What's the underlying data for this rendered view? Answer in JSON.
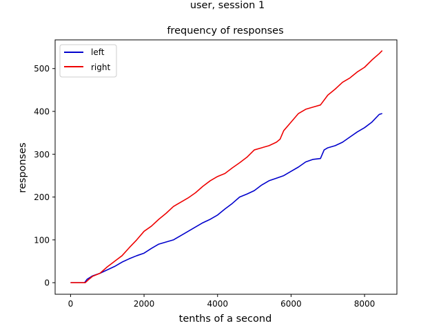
{
  "chart_data": {
    "type": "line",
    "suptitle": "user,  session 1",
    "title": "frequency of responses",
    "xlabel": "tenths of a second",
    "ylabel": "responses",
    "xlim": [
      -420,
      8880
    ],
    "ylim": [
      -27,
      567
    ],
    "xticks": [
      0,
      2000,
      4000,
      6000,
      8000
    ],
    "yticks": [
      0,
      100,
      200,
      300,
      400,
      500
    ],
    "xtick_labels": [
      "0",
      "2000",
      "4000",
      "6000",
      "8000"
    ],
    "ytick_labels": [
      "0",
      "100",
      "200",
      "300",
      "400",
      "500"
    ],
    "grid": false,
    "legend_position": "upper-left",
    "series": [
      {
        "name": "left",
        "color": "#0000cc",
        "points": [
          [
            0,
            0
          ],
          [
            380,
            0
          ],
          [
            450,
            8
          ],
          [
            600,
            16
          ],
          [
            800,
            22
          ],
          [
            1000,
            30
          ],
          [
            1200,
            38
          ],
          [
            1400,
            48
          ],
          [
            1600,
            56
          ],
          [
            1800,
            63
          ],
          [
            2000,
            69
          ],
          [
            2200,
            80
          ],
          [
            2400,
            90
          ],
          [
            2600,
            95
          ],
          [
            2800,
            100
          ],
          [
            3000,
            110
          ],
          [
            3200,
            120
          ],
          [
            3400,
            130
          ],
          [
            3600,
            140
          ],
          [
            3800,
            148
          ],
          [
            4000,
            158
          ],
          [
            4200,
            172
          ],
          [
            4400,
            185
          ],
          [
            4600,
            200
          ],
          [
            4800,
            207
          ],
          [
            5000,
            215
          ],
          [
            5200,
            228
          ],
          [
            5400,
            238
          ],
          [
            5600,
            244
          ],
          [
            5800,
            250
          ],
          [
            6000,
            260
          ],
          [
            6200,
            270
          ],
          [
            6400,
            282
          ],
          [
            6600,
            288
          ],
          [
            6800,
            290
          ],
          [
            6900,
            310
          ],
          [
            7000,
            315
          ],
          [
            7200,
            320
          ],
          [
            7400,
            328
          ],
          [
            7600,
            340
          ],
          [
            7800,
            352
          ],
          [
            8000,
            362
          ],
          [
            8200,
            375
          ],
          [
            8400,
            393
          ],
          [
            8480,
            395
          ]
        ]
      },
      {
        "name": "right",
        "color": "#ee0000",
        "points": [
          [
            0,
            0
          ],
          [
            400,
            0
          ],
          [
            500,
            8
          ],
          [
            600,
            15
          ],
          [
            800,
            22
          ],
          [
            1000,
            37
          ],
          [
            1200,
            50
          ],
          [
            1400,
            63
          ],
          [
            1600,
            82
          ],
          [
            1800,
            100
          ],
          [
            2000,
            120
          ],
          [
            2200,
            132
          ],
          [
            2400,
            148
          ],
          [
            2600,
            162
          ],
          [
            2800,
            178
          ],
          [
            3000,
            188
          ],
          [
            3200,
            198
          ],
          [
            3400,
            210
          ],
          [
            3600,
            225
          ],
          [
            3800,
            238
          ],
          [
            4000,
            248
          ],
          [
            4200,
            255
          ],
          [
            4400,
            268
          ],
          [
            4600,
            280
          ],
          [
            4800,
            293
          ],
          [
            5000,
            310
          ],
          [
            5200,
            315
          ],
          [
            5400,
            320
          ],
          [
            5600,
            328
          ],
          [
            5700,
            335
          ],
          [
            5800,
            355
          ],
          [
            6000,
            375
          ],
          [
            6200,
            395
          ],
          [
            6400,
            405
          ],
          [
            6600,
            410
          ],
          [
            6800,
            415
          ],
          [
            7000,
            438
          ],
          [
            7200,
            452
          ],
          [
            7400,
            468
          ],
          [
            7600,
            478
          ],
          [
            7800,
            492
          ],
          [
            8000,
            503
          ],
          [
            8200,
            520
          ],
          [
            8400,
            535
          ],
          [
            8480,
            542
          ]
        ]
      }
    ]
  }
}
